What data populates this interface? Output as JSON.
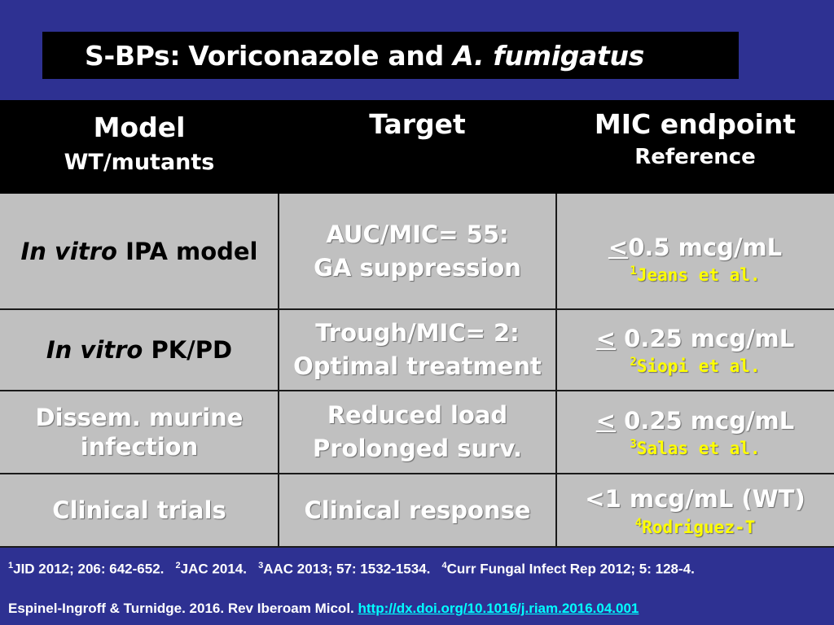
{
  "title": {
    "prefix": "S-BPs:",
    "main": "Voriconazole and ",
    "italic": "A. fumigatus"
  },
  "header": {
    "model": "Model",
    "model_sub": "WT/mutants",
    "target": "Target",
    "mic": "MIC endpoint",
    "mic_sub": "Reference"
  },
  "rows": [
    {
      "model_italic": "In vitro",
      "model_rest": " IPA model",
      "target_l1": "AUC/MIC= 55:",
      "target_l2": "GA suppression",
      "mic_sym": "<",
      "mic_val": "0.5 mcg/mL",
      "ref_num": "1",
      "ref": "Jeans et al."
    },
    {
      "model_italic": "In vitro",
      "model_rest": " PK/PD",
      "target_l1": "Trough/MIC= 2:",
      "target_l2": "Optimal treatment",
      "mic_sym": "<",
      "mic_val": " 0.25 mcg/mL",
      "ref_num": "2",
      "ref": "Siopi et al."
    },
    {
      "model_l1": "Dissem. murine",
      "model_l2": "infection",
      "target_l1": "Reduced load",
      "target_l2": "Prolonged surv.",
      "mic_sym": "<",
      "mic_val": " 0.25 mcg/mL",
      "ref_num": "3",
      "ref": "Salas et al."
    },
    {
      "model": "Clinical trials",
      "target": "Clinical response",
      "mic": "<1 mcg/mL (WT)",
      "ref_num": "4",
      "ref": "Rodriguez-T"
    }
  ],
  "footnotes": {
    "n1": "1",
    "t1": "JID 2012; 206: 642-652.",
    "n2": "2",
    "t2": "JAC 2014.",
    "n3": "3",
    "t3": "AAC 2013; 57: 1532-1534.",
    "n4": "4",
    "t4": "Curr Fungal Infect Rep 2012; 5: 128-4."
  },
  "citation": {
    "text": "Espinel-Ingroff & Turnidge. 2016. Rev Iberoam Micol.",
    "link": "http://dx.doi.org/10.1016/j.riam.2016.04.001"
  }
}
